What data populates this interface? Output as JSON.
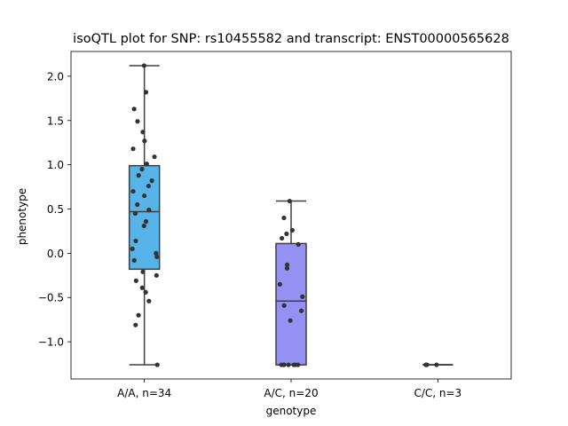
{
  "chart_data": {
    "type": "box",
    "title": "isoQTL plot for SNP: rs10455582 and transcript: ENST00000565628",
    "xlabel": "genotype",
    "ylabel": "phenotype",
    "ylim": [
      -1.42,
      2.28
    ],
    "yticks": [
      -1.0,
      -0.5,
      0.0,
      0.5,
      1.0,
      1.5,
      2.0
    ],
    "ytick_labels": [
      "−1.0",
      "−0.5",
      "0.0",
      "0.5",
      "1.0",
      "1.5",
      "2.0"
    ],
    "categories": [
      "A/A, n=34",
      "A/C, n=20",
      "C/C, n=3"
    ],
    "grid": false,
    "boxes": [
      {
        "category": "A/A, n=34",
        "color": "#56b4e9",
        "whisker_low": -1.26,
        "q1": -0.18,
        "median": 0.47,
        "q3": 0.99,
        "whisker_high": 2.12
      },
      {
        "category": "A/C, n=20",
        "color": "#9491f2",
        "whisker_low": -1.26,
        "q1": -1.26,
        "median": -0.54,
        "q3": 0.11,
        "whisker_high": 0.59
      },
      {
        "category": "C/C, n=3",
        "color": "#c985b8",
        "whisker_low": -1.26,
        "q1": -1.26,
        "median": -1.26,
        "q3": -1.26,
        "whisker_high": -1.26
      }
    ],
    "points": [
      {
        "category": "A/A, n=34",
        "y": [
          2.12,
          1.82,
          1.63,
          1.49,
          1.37,
          1.27,
          1.18,
          1.09,
          1.01,
          0.95,
          0.88,
          0.82,
          0.76,
          0.7,
          0.65,
          0.55,
          0.49,
          0.45,
          0.36,
          0.31,
          0.14,
          0.05,
          0.0,
          -0.04,
          -0.08,
          -0.21,
          -0.25,
          -0.31,
          -0.39,
          -0.44,
          -0.54,
          -0.7,
          -0.81,
          -1.26
        ]
      },
      {
        "category": "A/C, n=20",
        "y": [
          0.59,
          0.4,
          0.26,
          0.22,
          0.17,
          0.1,
          -0.13,
          -0.17,
          -0.35,
          -0.49,
          -0.59,
          -0.65,
          -0.76,
          -1.26,
          -1.26,
          -1.26,
          -1.26,
          -1.26,
          -1.26,
          -1.26
        ]
      },
      {
        "category": "C/C, n=3",
        "y": [
          -1.26,
          -1.26,
          -1.26
        ]
      }
    ]
  }
}
